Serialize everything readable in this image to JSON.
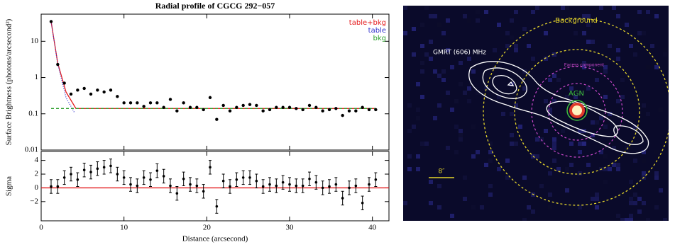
{
  "chart_data": [
    {
      "type": "line",
      "title": "Radial profile of CGCG 292−057",
      "ylabel": "Surface Brightness (photons/arcsecond²)",
      "log_y": true,
      "xlim": [
        0,
        42
      ],
      "ylim": [
        0.01,
        56
      ],
      "yticks": [
        0.01,
        0.1,
        1,
        10
      ],
      "points": {
        "color": "#000000",
        "x": [
          1.2,
          2,
          2.8,
          3.6,
          4.4,
          5.2,
          6,
          6.8,
          7.6,
          8.4,
          9.2,
          10,
          10.8,
          11.6,
          12.4,
          13.2,
          14,
          14.8,
          15.6,
          16.4,
          17.2,
          18,
          18.8,
          19.6,
          20.4,
          21.2,
          22,
          22.8,
          23.6,
          24.4,
          25.2,
          26,
          26.8,
          27.6,
          28.4,
          29.2,
          30,
          30.8,
          31.6,
          32.4,
          33.2,
          34,
          34.8,
          35.6,
          36.4,
          37.2,
          38,
          38.8,
          39.6,
          40.4
        ],
        "values": [
          35,
          2.3,
          0.7,
          0.35,
          0.45,
          0.5,
          0.35,
          0.45,
          0.4,
          0.45,
          0.3,
          0.2,
          0.2,
          0.2,
          0.16,
          0.2,
          0.2,
          0.15,
          0.25,
          0.12,
          0.2,
          0.15,
          0.15,
          0.13,
          0.28,
          0.07,
          0.17,
          0.12,
          0.15,
          0.17,
          0.18,
          0.17,
          0.12,
          0.13,
          0.15,
          0.15,
          0.15,
          0.14,
          0.13,
          0.17,
          0.15,
          0.12,
          0.13,
          0.14,
          0.09,
          0.12,
          0.12,
          0.15,
          0.13,
          0.13
        ]
      },
      "series": [
        {
          "name": "table+bkg",
          "color": "#e41a1c",
          "dash": "none",
          "x": [
            1.2,
            2,
            3,
            4.2,
            40.4
          ],
          "values": [
            35,
            2.5,
            0.4,
            0.14,
            0.14
          ]
        },
        {
          "name": "table",
          "color": "#3333cc",
          "dash": "1,2",
          "x": [
            1.2,
            2,
            3,
            4
          ],
          "values": [
            35,
            2.4,
            0.28,
            0.11
          ]
        },
        {
          "name": "bkg",
          "color": "#2ca02c",
          "dash": "4,3",
          "x": [
            1.2,
            40.4
          ],
          "values": [
            0.14,
            0.14
          ]
        }
      ],
      "legend": "upper right"
    },
    {
      "type": "errorbar",
      "xlabel": "Distance (arcsecond)",
      "ylabel": "Sigma",
      "xlim": [
        0,
        42
      ],
      "xticks": [
        0,
        10,
        20,
        30,
        40
      ],
      "ylim": [
        -4.8,
        5.3
      ],
      "yticks": [
        {
          "value": -2,
          "label": "−2"
        },
        0,
        2,
        4
      ],
      "error": 1,
      "reference_line": {
        "value": 0,
        "color": "#e41a1c"
      },
      "x": [
        1.2,
        2,
        2.8,
        3.6,
        4.4,
        5.2,
        6,
        6.8,
        7.6,
        8.4,
        9.2,
        10,
        10.8,
        11.6,
        12.4,
        13.2,
        14,
        14.8,
        15.6,
        16.4,
        17.2,
        18,
        18.8,
        19.6,
        20.4,
        21.2,
        22,
        22.8,
        23.6,
        24.4,
        25.2,
        26,
        26.8,
        27.6,
        28.4,
        29.2,
        30,
        30.8,
        31.6,
        32.4,
        33.2,
        34,
        34.8,
        35.6,
        36.4,
        37.2,
        38,
        38.8,
        39.6,
        40.4
      ],
      "values": [
        0.2,
        0.2,
        1.5,
        2,
        1.2,
        2.6,
        2.3,
        2.8,
        3,
        3.2,
        2,
        1.5,
        0.5,
        0.3,
        1.5,
        1.2,
        2.5,
        1.7,
        0.3,
        -0.8,
        1.3,
        0.5,
        0.3,
        -0.5,
        3,
        -2.7,
        1,
        0.2,
        1.2,
        1.5,
        1.5,
        1,
        0.2,
        0.5,
        0.3,
        0.8,
        0.5,
        0.3,
        0.3,
        1.3,
        0.8,
        0,
        0.2,
        0.5,
        -1.5,
        0,
        0.3,
        -2.2,
        0.5,
        1.2
      ]
    }
  ],
  "image": {
    "labels": {
      "background": "Background",
      "radio": "GMRT (606) MHz",
      "excess": "Excess component",
      "agn": "AGN",
      "scale": "8″"
    }
  }
}
